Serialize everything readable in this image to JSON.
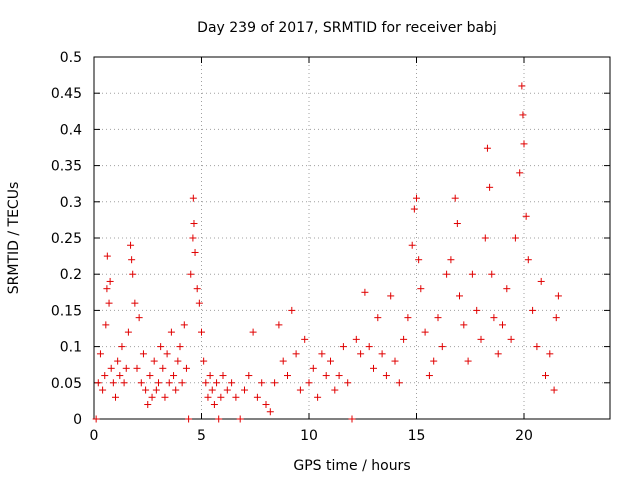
{
  "chart_data": {
    "type": "scatter",
    "title": "Day 239 of 2017, SRMTID for receiver babj",
    "xlabel": "GPS time / hours",
    "ylabel": "SRMTID / TECUs",
    "xlim": [
      0,
      24
    ],
    "ylim": [
      0,
      0.5
    ],
    "xticks": [
      0,
      5,
      10,
      15,
      20
    ],
    "yticks": [
      0,
      0.05,
      0.1,
      0.15,
      0.2,
      0.25,
      0.3,
      0.35,
      0.4,
      0.45,
      0.5
    ],
    "xtick_labels": [
      "0",
      "5",
      "10",
      "15",
      "20"
    ],
    "ytick_labels": [
      "0",
      "0.05",
      "0.1",
      "0.15",
      "0.2",
      "0.25",
      "0.3",
      "0.35",
      "0.4",
      "0.45",
      "0.5"
    ],
    "grid": true,
    "marker": "+",
    "series_color": "#e00000",
    "series": [
      {
        "name": "SRMTID",
        "points": [
          [
            0.1,
            0.0
          ],
          [
            0.2,
            0.05
          ],
          [
            0.3,
            0.09
          ],
          [
            0.4,
            0.04
          ],
          [
            0.5,
            0.06
          ],
          [
            0.55,
            0.13
          ],
          [
            0.6,
            0.18
          ],
          [
            0.62,
            0.225
          ],
          [
            0.7,
            0.16
          ],
          [
            0.75,
            0.19
          ],
          [
            0.8,
            0.07
          ],
          [
            0.9,
            0.05
          ],
          [
            1.0,
            0.03
          ],
          [
            1.1,
            0.08
          ],
          [
            1.2,
            0.06
          ],
          [
            1.3,
            0.1
          ],
          [
            1.4,
            0.05
          ],
          [
            1.5,
            0.07
          ],
          [
            1.6,
            0.12
          ],
          [
            1.7,
            0.24
          ],
          [
            1.75,
            0.22
          ],
          [
            1.8,
            0.2
          ],
          [
            1.9,
            0.16
          ],
          [
            2.0,
            0.07
          ],
          [
            2.1,
            0.14
          ],
          [
            2.2,
            0.05
          ],
          [
            2.3,
            0.09
          ],
          [
            2.4,
            0.04
          ],
          [
            2.5,
            0.02
          ],
          [
            2.6,
            0.06
          ],
          [
            2.7,
            0.03
          ],
          [
            2.8,
            0.08
          ],
          [
            2.9,
            0.04
          ],
          [
            3.0,
            0.05
          ],
          [
            3.1,
            0.1
          ],
          [
            3.2,
            0.07
          ],
          [
            3.3,
            0.03
          ],
          [
            3.4,
            0.09
          ],
          [
            3.5,
            0.05
          ],
          [
            3.6,
            0.12
          ],
          [
            3.7,
            0.06
          ],
          [
            3.8,
            0.04
          ],
          [
            3.9,
            0.08
          ],
          [
            4.0,
            0.1
          ],
          [
            4.1,
            0.05
          ],
          [
            4.2,
            0.13
          ],
          [
            4.3,
            0.07
          ],
          [
            4.4,
            0.0
          ],
          [
            4.5,
            0.2
          ],
          [
            4.6,
            0.25
          ],
          [
            4.62,
            0.305
          ],
          [
            4.65,
            0.27
          ],
          [
            4.7,
            0.23
          ],
          [
            4.8,
            0.18
          ],
          [
            4.9,
            0.16
          ],
          [
            5.0,
            0.12
          ],
          [
            5.1,
            0.08
          ],
          [
            5.2,
            0.05
          ],
          [
            5.3,
            0.03
          ],
          [
            5.4,
            0.06
          ],
          [
            5.5,
            0.04
          ],
          [
            5.6,
            0.02
          ],
          [
            5.7,
            0.05
          ],
          [
            5.8,
            0.0
          ],
          [
            5.9,
            0.03
          ],
          [
            6.0,
            0.06
          ],
          [
            6.2,
            0.04
          ],
          [
            6.4,
            0.05
          ],
          [
            6.6,
            0.03
          ],
          [
            6.8,
            0.0
          ],
          [
            7.0,
            0.04
          ],
          [
            7.2,
            0.06
          ],
          [
            7.4,
            0.12
          ],
          [
            7.6,
            0.03
          ],
          [
            7.8,
            0.05
          ],
          [
            8.0,
            0.02
          ],
          [
            8.2,
            0.01
          ],
          [
            8.4,
            0.05
          ],
          [
            8.6,
            0.13
          ],
          [
            8.8,
            0.08
          ],
          [
            9.0,
            0.06
          ],
          [
            9.2,
            0.15
          ],
          [
            9.4,
            0.09
          ],
          [
            9.6,
            0.04
          ],
          [
            9.8,
            0.11
          ],
          [
            10.0,
            0.05
          ],
          [
            10.2,
            0.07
          ],
          [
            10.4,
            0.03
          ],
          [
            10.6,
            0.09
          ],
          [
            10.8,
            0.06
          ],
          [
            11.0,
            0.08
          ],
          [
            11.2,
            0.04
          ],
          [
            11.4,
            0.06
          ],
          [
            11.6,
            0.1
          ],
          [
            11.8,
            0.05
          ],
          [
            12.0,
            0.0
          ],
          [
            12.2,
            0.11
          ],
          [
            12.4,
            0.09
          ],
          [
            12.6,
            0.175
          ],
          [
            12.8,
            0.1
          ],
          [
            13.0,
            0.07
          ],
          [
            13.2,
            0.14
          ],
          [
            13.4,
            0.09
          ],
          [
            13.6,
            0.06
          ],
          [
            13.8,
            0.17
          ],
          [
            14.0,
            0.08
          ],
          [
            14.2,
            0.05
          ],
          [
            14.4,
            0.11
          ],
          [
            14.6,
            0.14
          ],
          [
            14.8,
            0.24
          ],
          [
            14.9,
            0.29
          ],
          [
            15.0,
            0.305
          ],
          [
            15.1,
            0.22
          ],
          [
            15.2,
            0.18
          ],
          [
            15.4,
            0.12
          ],
          [
            15.6,
            0.06
          ],
          [
            15.8,
            0.08
          ],
          [
            16.0,
            0.14
          ],
          [
            16.2,
            0.1
          ],
          [
            16.4,
            0.2
          ],
          [
            16.6,
            0.22
          ],
          [
            16.8,
            0.305
          ],
          [
            16.9,
            0.27
          ],
          [
            17.0,
            0.17
          ],
          [
            17.2,
            0.13
          ],
          [
            17.4,
            0.08
          ],
          [
            17.6,
            0.2
          ],
          [
            17.8,
            0.15
          ],
          [
            18.0,
            0.11
          ],
          [
            18.2,
            0.25
          ],
          [
            18.3,
            0.374
          ],
          [
            18.4,
            0.32
          ],
          [
            18.5,
            0.2
          ],
          [
            18.6,
            0.14
          ],
          [
            18.8,
            0.09
          ],
          [
            19.0,
            0.13
          ],
          [
            19.2,
            0.18
          ],
          [
            19.4,
            0.11
          ],
          [
            19.6,
            0.25
          ],
          [
            19.8,
            0.34
          ],
          [
            19.9,
            0.46
          ],
          [
            19.95,
            0.42
          ],
          [
            20.0,
            0.38
          ],
          [
            20.1,
            0.28
          ],
          [
            20.2,
            0.22
          ],
          [
            20.4,
            0.15
          ],
          [
            20.6,
            0.1
          ],
          [
            20.8,
            0.19
          ],
          [
            21.0,
            0.06
          ],
          [
            21.2,
            0.09
          ],
          [
            21.4,
            0.04
          ],
          [
            21.5,
            0.14
          ],
          [
            21.6,
            0.17
          ]
        ]
      }
    ]
  }
}
